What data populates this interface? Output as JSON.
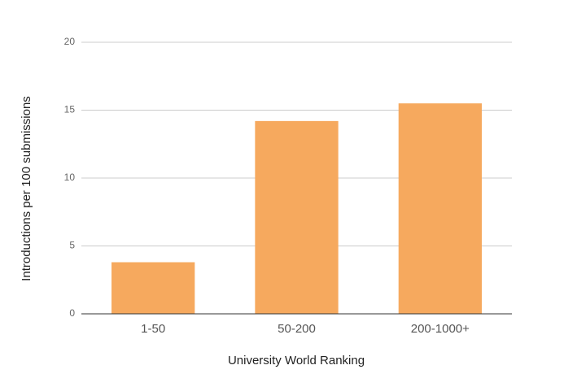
{
  "chart_data": {
    "type": "bar",
    "x_label": "University World Ranking",
    "y_label": "Introductions per 100 submissions",
    "categories": [
      "1-50",
      "50-200",
      "200-1000+"
    ],
    "values": [
      3.8,
      14.2,
      15.5
    ],
    "color": "#f6a95e",
    "ylim": [
      0,
      20
    ],
    "yticks": [
      0,
      5,
      10,
      15,
      20
    ],
    "grid": true
  }
}
